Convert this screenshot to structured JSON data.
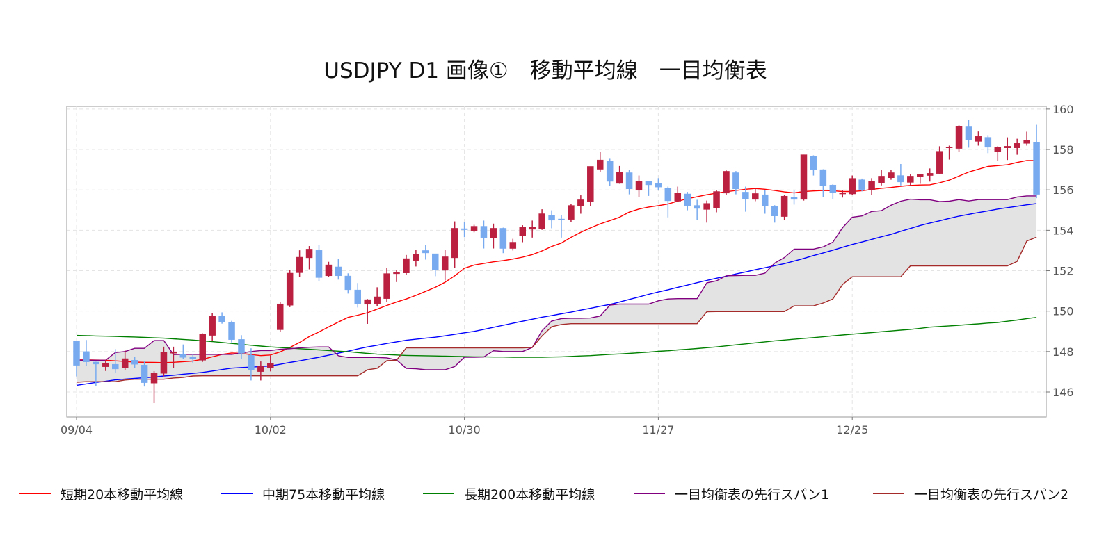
{
  "chart_data": {
    "type": "candlestick",
    "title": "USDJPY D1 画像①　移動平均線　一目均衡表",
    "xlabel": "",
    "ylabel": "",
    "ylim": [
      145,
      160.3
    ],
    "yticks": [
      146,
      148,
      150,
      152,
      154,
      156,
      158,
      160
    ],
    "y_axis_side": "right",
    "xticks": [
      {
        "index": 0,
        "label": "09/04"
      },
      {
        "index": 20,
        "label": "10/02"
      },
      {
        "index": 40,
        "label": "10/30"
      },
      {
        "index": 60,
        "label": "11/27"
      },
      {
        "index": 80,
        "label": "12/25"
      }
    ],
    "grid": true,
    "legend_position": "bottom",
    "colors": {
      "up": "#bb2040",
      "down": "#78aaf0",
      "cloud": "#e3e3e3"
    },
    "candles_ohlc": [
      [
        148.51,
        148.51,
        146.77,
        147.32
      ],
      [
        148.0,
        148.57,
        147.28,
        147.49
      ],
      [
        147.48,
        147.5,
        146.31,
        147.38
      ],
      [
        147.25,
        147.59,
        147.04,
        147.41
      ],
      [
        147.37,
        148.12,
        146.94,
        147.14
      ],
      [
        147.19,
        148.05,
        147.08,
        147.65
      ],
      [
        147.57,
        147.74,
        147.19,
        147.37
      ],
      [
        147.33,
        147.51,
        146.27,
        146.46
      ],
      [
        146.44,
        147.03,
        145.45,
        146.92
      ],
      [
        146.92,
        148.24,
        146.77,
        147.98
      ],
      [
        147.95,
        148.24,
        147.17,
        147.97
      ],
      [
        147.86,
        148.35,
        147.65,
        147.71
      ],
      [
        147.72,
        147.89,
        147.42,
        147.63
      ],
      [
        147.57,
        148.9,
        147.49,
        148.88
      ],
      [
        148.8,
        149.89,
        148.54,
        149.74
      ],
      [
        149.77,
        149.94,
        149.38,
        149.48
      ],
      [
        149.46,
        149.52,
        148.45,
        148.59
      ],
      [
        148.6,
        148.81,
        147.65,
        147.91
      ],
      [
        147.82,
        148.16,
        146.57,
        147.08
      ],
      [
        147.01,
        147.51,
        146.57,
        147.26
      ],
      [
        147.21,
        147.8,
        147.02,
        147.43
      ],
      [
        149.08,
        150.46,
        148.98,
        150.36
      ],
      [
        150.29,
        152.04,
        150.2,
        151.88
      ],
      [
        151.9,
        153.01,
        151.68,
        152.67
      ],
      [
        152.64,
        153.22,
        152.07,
        153.07
      ],
      [
        153.01,
        153.27,
        151.49,
        151.66
      ],
      [
        151.75,
        152.44,
        151.68,
        152.29
      ],
      [
        152.19,
        152.59,
        151.56,
        151.75
      ],
      [
        151.74,
        151.87,
        150.87,
        151.06
      ],
      [
        151.05,
        151.39,
        150.18,
        150.37
      ],
      [
        150.34,
        150.6,
        149.37,
        150.57
      ],
      [
        150.37,
        151.18,
        150.24,
        150.71
      ],
      [
        150.62,
        152.14,
        150.46,
        151.86
      ],
      [
        151.85,
        152.04,
        151.44,
        151.91
      ],
      [
        151.89,
        152.78,
        151.78,
        152.6
      ],
      [
        152.51,
        153.03,
        152.21,
        152.83
      ],
      [
        153.0,
        153.26,
        152.55,
        152.88
      ],
      [
        152.84,
        152.84,
        151.73,
        152.06
      ],
      [
        152.02,
        153.03,
        151.52,
        152.69
      ],
      [
        152.64,
        154.44,
        152.13,
        154.1
      ],
      [
        154.08,
        154.41,
        153.66,
        154.04
      ],
      [
        153.98,
        154.27,
        153.9,
        154.2
      ],
      [
        154.2,
        154.48,
        153.1,
        153.64
      ],
      [
        153.61,
        154.33,
        153.1,
        154.1
      ],
      [
        154.1,
        154.13,
        152.87,
        153.1
      ],
      [
        153.1,
        153.58,
        153.0,
        153.41
      ],
      [
        153.72,
        154.25,
        153.41,
        154.14
      ],
      [
        154.05,
        154.48,
        153.64,
        154.16
      ],
      [
        154.09,
        155.04,
        154.02,
        154.82
      ],
      [
        154.76,
        154.99,
        154.1,
        154.5
      ],
      [
        154.56,
        154.76,
        153.64,
        154.54
      ],
      [
        154.54,
        155.3,
        154.41,
        155.23
      ],
      [
        155.19,
        155.73,
        154.82,
        155.51
      ],
      [
        155.43,
        157.16,
        155.19,
        157.16
      ],
      [
        157.02,
        157.88,
        156.87,
        157.48
      ],
      [
        157.44,
        157.54,
        156.19,
        156.42
      ],
      [
        156.32,
        157.18,
        156.3,
        156.88
      ],
      [
        156.85,
        157.0,
        155.78,
        156.05
      ],
      [
        155.98,
        156.71,
        155.65,
        156.44
      ],
      [
        156.41,
        156.41,
        155.7,
        156.25
      ],
      [
        156.31,
        156.58,
        155.97,
        156.14
      ],
      [
        156.1,
        156.16,
        154.64,
        155.46
      ],
      [
        155.44,
        156.16,
        155.39,
        155.85
      ],
      [
        155.8,
        155.9,
        154.99,
        155.22
      ],
      [
        155.23,
        155.51,
        154.5,
        155.08
      ],
      [
        155.03,
        155.47,
        154.38,
        155.33
      ],
      [
        155.1,
        155.99,
        154.89,
        155.92
      ],
      [
        155.84,
        156.96,
        155.74,
        156.92
      ],
      [
        156.85,
        156.93,
        155.78,
        156.05
      ],
      [
        155.89,
        156.16,
        154.92,
        155.56
      ],
      [
        155.53,
        156.11,
        155.44,
        155.82
      ],
      [
        155.76,
        155.99,
        154.82,
        155.19
      ],
      [
        155.18,
        155.24,
        154.38,
        154.71
      ],
      [
        154.68,
        155.76,
        154.5,
        155.69
      ],
      [
        155.62,
        155.97,
        155.27,
        155.53
      ],
      [
        155.53,
        157.74,
        155.47,
        157.74
      ],
      [
        157.68,
        157.71,
        156.71,
        157.01
      ],
      [
        157.0,
        157.02,
        155.65,
        156.19
      ],
      [
        156.24,
        156.28,
        155.55,
        155.87
      ],
      [
        155.81,
        155.97,
        155.62,
        155.85
      ],
      [
        155.8,
        156.71,
        155.76,
        156.57
      ],
      [
        156.5,
        156.56,
        155.93,
        156.02
      ],
      [
        156.01,
        156.58,
        155.76,
        156.41
      ],
      [
        156.33,
        156.99,
        156.22,
        156.68
      ],
      [
        156.6,
        156.99,
        156.5,
        156.85
      ],
      [
        156.71,
        157.28,
        156.22,
        156.39
      ],
      [
        156.37,
        156.79,
        156.19,
        156.68
      ],
      [
        156.64,
        156.79,
        156.3,
        156.76
      ],
      [
        156.71,
        157.06,
        156.41,
        156.82
      ],
      [
        156.81,
        158.16,
        156.77,
        157.91
      ],
      [
        158.09,
        158.19,
        157.5,
        158.13
      ],
      [
        158.05,
        159.2,
        157.88,
        159.16
      ],
      [
        159.12,
        159.46,
        158.09,
        158.48
      ],
      [
        158.4,
        158.89,
        158.19,
        158.65
      ],
      [
        158.6,
        158.71,
        157.82,
        158.11
      ],
      [
        157.88,
        158.16,
        157.44,
        158.13
      ],
      [
        158.08,
        158.6,
        157.48,
        158.16
      ],
      [
        158.08,
        158.53,
        157.74,
        158.3
      ],
      [
        158.3,
        158.88,
        158.19,
        158.44
      ],
      [
        158.36,
        159.22,
        155.59,
        155.78
      ]
    ],
    "series": [
      {
        "name": "短期20本移動平均線",
        "color": "#ff0000",
        "values": [
          147.59,
          147.59,
          147.58,
          147.57,
          147.54,
          147.51,
          147.48,
          147.47,
          147.46,
          147.45,
          147.47,
          147.5,
          147.53,
          147.62,
          147.74,
          147.86,
          147.93,
          147.91,
          147.85,
          147.8,
          147.83,
          147.98,
          148.2,
          148.45,
          148.74,
          148.97,
          149.22,
          149.46,
          149.69,
          149.8,
          149.92,
          150.1,
          150.28,
          150.45,
          150.6,
          150.78,
          150.98,
          151.18,
          151.43,
          151.75,
          152.12,
          152.28,
          152.36,
          152.44,
          152.5,
          152.58,
          152.67,
          152.8,
          152.98,
          153.2,
          153.37,
          153.65,
          153.9,
          154.12,
          154.32,
          154.48,
          154.65,
          154.9,
          155.05,
          155.15,
          155.22,
          155.3,
          155.44,
          155.56,
          155.66,
          155.76,
          155.84,
          155.91,
          155.97,
          156.03,
          156.07,
          156.03,
          155.97,
          155.9,
          155.85,
          155.92,
          155.95,
          155.97,
          155.96,
          155.92,
          155.92,
          155.96,
          156.02,
          156.08,
          156.12,
          156.18,
          156.22,
          156.24,
          156.25,
          156.35,
          156.48,
          156.68,
          156.88,
          157.02,
          157.16,
          157.2,
          157.24,
          157.36,
          157.45,
          157.45
        ]
      },
      {
        "name": "中期75本移動平均線",
        "color": "#0000ff",
        "values": [
          146.33,
          146.4,
          146.47,
          146.53,
          146.6,
          146.64,
          146.67,
          146.71,
          146.74,
          146.79,
          146.83,
          146.88,
          146.92,
          146.97,
          147.04,
          147.11,
          147.18,
          147.21,
          147.23,
          147.26,
          147.29,
          147.37,
          147.46,
          147.54,
          147.63,
          147.72,
          147.82,
          147.92,
          148.02,
          148.13,
          148.23,
          148.31,
          148.4,
          148.48,
          148.56,
          148.61,
          148.66,
          148.71,
          148.78,
          148.85,
          148.93,
          149.0,
          149.1,
          149.2,
          149.3,
          149.4,
          149.5,
          149.6,
          149.7,
          149.78,
          149.87,
          149.95,
          150.05,
          150.14,
          150.24,
          150.33,
          150.45,
          150.58,
          150.7,
          150.83,
          150.95,
          151.06,
          151.18,
          151.29,
          151.41,
          151.52,
          151.63,
          151.73,
          151.84,
          151.94,
          152.05,
          152.15,
          152.25,
          152.35,
          152.48,
          152.61,
          152.75,
          152.88,
          153.02,
          153.16,
          153.3,
          153.42,
          153.55,
          153.68,
          153.8,
          153.95,
          154.09,
          154.24,
          154.36,
          154.47,
          154.59,
          154.7,
          154.79,
          154.88,
          154.96,
          155.05,
          155.12,
          155.19,
          155.26,
          155.32
        ]
      },
      {
        "name": "長期200本移動平均線",
        "color": "#008000",
        "values": [
          148.8,
          148.79,
          148.77,
          148.76,
          148.75,
          148.73,
          148.72,
          148.7,
          148.68,
          148.66,
          148.63,
          148.6,
          148.57,
          148.53,
          148.49,
          148.45,
          148.4,
          148.36,
          148.31,
          148.27,
          148.23,
          148.2,
          148.17,
          148.14,
          148.11,
          148.08,
          148.05,
          148.02,
          147.99,
          147.95,
          147.91,
          147.87,
          147.85,
          147.83,
          147.81,
          147.8,
          147.79,
          147.78,
          147.77,
          147.76,
          147.75,
          147.74,
          147.74,
          147.73,
          147.73,
          147.72,
          147.72,
          147.72,
          147.72,
          147.73,
          147.74,
          147.76,
          147.78,
          147.8,
          147.83,
          147.86,
          147.88,
          147.91,
          147.94,
          147.97,
          148.01,
          148.04,
          148.08,
          148.11,
          148.15,
          148.19,
          148.23,
          148.28,
          148.33,
          148.38,
          148.43,
          148.48,
          148.53,
          148.57,
          148.61,
          148.65,
          148.69,
          148.73,
          148.78,
          148.82,
          148.86,
          148.9,
          148.94,
          148.98,
          149.02,
          149.06,
          149.1,
          149.15,
          149.21,
          149.24,
          149.27,
          149.3,
          149.34,
          149.37,
          149.41,
          149.44,
          149.5,
          149.56,
          149.63,
          149.69
        ]
      },
      {
        "name": "一目均衡表の先行スパン1",
        "color": "#800080",
        "values": [
          147.57,
          147.57,
          147.57,
          147.57,
          147.95,
          148.0,
          148.16,
          148.16,
          148.54,
          148.54,
          147.85,
          147.86,
          147.86,
          147.86,
          147.86,
          147.86,
          147.86,
          147.93,
          148.0,
          148.05,
          148.05,
          148.11,
          148.14,
          148.18,
          148.21,
          148.23,
          148.23,
          147.79,
          147.71,
          147.71,
          147.71,
          147.71,
          147.69,
          147.59,
          147.17,
          147.15,
          147.1,
          147.1,
          147.1,
          147.26,
          147.72,
          147.72,
          147.73,
          148.04,
          148.0,
          148.0,
          148.0,
          148.2,
          149.03,
          149.51,
          149.63,
          149.65,
          149.65,
          149.66,
          149.76,
          150.3,
          150.35,
          150.35,
          150.35,
          150.35,
          150.51,
          150.6,
          150.62,
          150.62,
          150.62,
          151.4,
          151.5,
          151.75,
          151.76,
          151.77,
          151.77,
          151.88,
          152.38,
          152.65,
          153.07,
          153.07,
          153.07,
          153.18,
          153.41,
          154.13,
          154.65,
          154.71,
          154.93,
          154.97,
          155.24,
          155.44,
          155.54,
          155.51,
          155.51,
          155.42,
          155.44,
          155.52,
          155.45,
          155.52,
          155.52,
          155.52,
          155.52,
          155.65,
          155.7,
          155.7
        ]
      },
      {
        "name": "一目均衡表の先行スパン2",
        "color": "#a52a2a",
        "values": [
          146.48,
          146.51,
          146.51,
          146.51,
          146.51,
          146.59,
          146.63,
          146.63,
          146.63,
          146.63,
          146.69,
          146.72,
          146.79,
          146.8,
          146.8,
          146.8,
          146.8,
          146.8,
          146.8,
          146.8,
          146.8,
          146.8,
          146.8,
          146.8,
          146.8,
          146.8,
          146.8,
          146.8,
          146.8,
          146.8,
          147.1,
          147.17,
          147.55,
          147.57,
          148.18,
          148.18,
          148.18,
          148.18,
          148.18,
          148.18,
          148.18,
          148.18,
          148.18,
          148.18,
          148.18,
          148.18,
          148.18,
          148.2,
          148.77,
          149.23,
          149.34,
          149.38,
          149.38,
          149.38,
          149.38,
          149.38,
          149.38,
          149.38,
          149.38,
          149.38,
          149.38,
          149.38,
          149.38,
          149.38,
          149.38,
          149.97,
          149.98,
          149.98,
          149.98,
          149.98,
          149.98,
          149.98,
          149.98,
          149.98,
          150.26,
          150.26,
          150.26,
          150.4,
          150.6,
          151.32,
          151.7,
          151.7,
          151.7,
          151.7,
          151.7,
          151.7,
          152.24,
          152.24,
          152.24,
          152.24,
          152.24,
          152.24,
          152.24,
          152.24,
          152.24,
          152.24,
          152.24,
          152.46,
          153.47,
          153.66
        ]
      }
    ]
  }
}
